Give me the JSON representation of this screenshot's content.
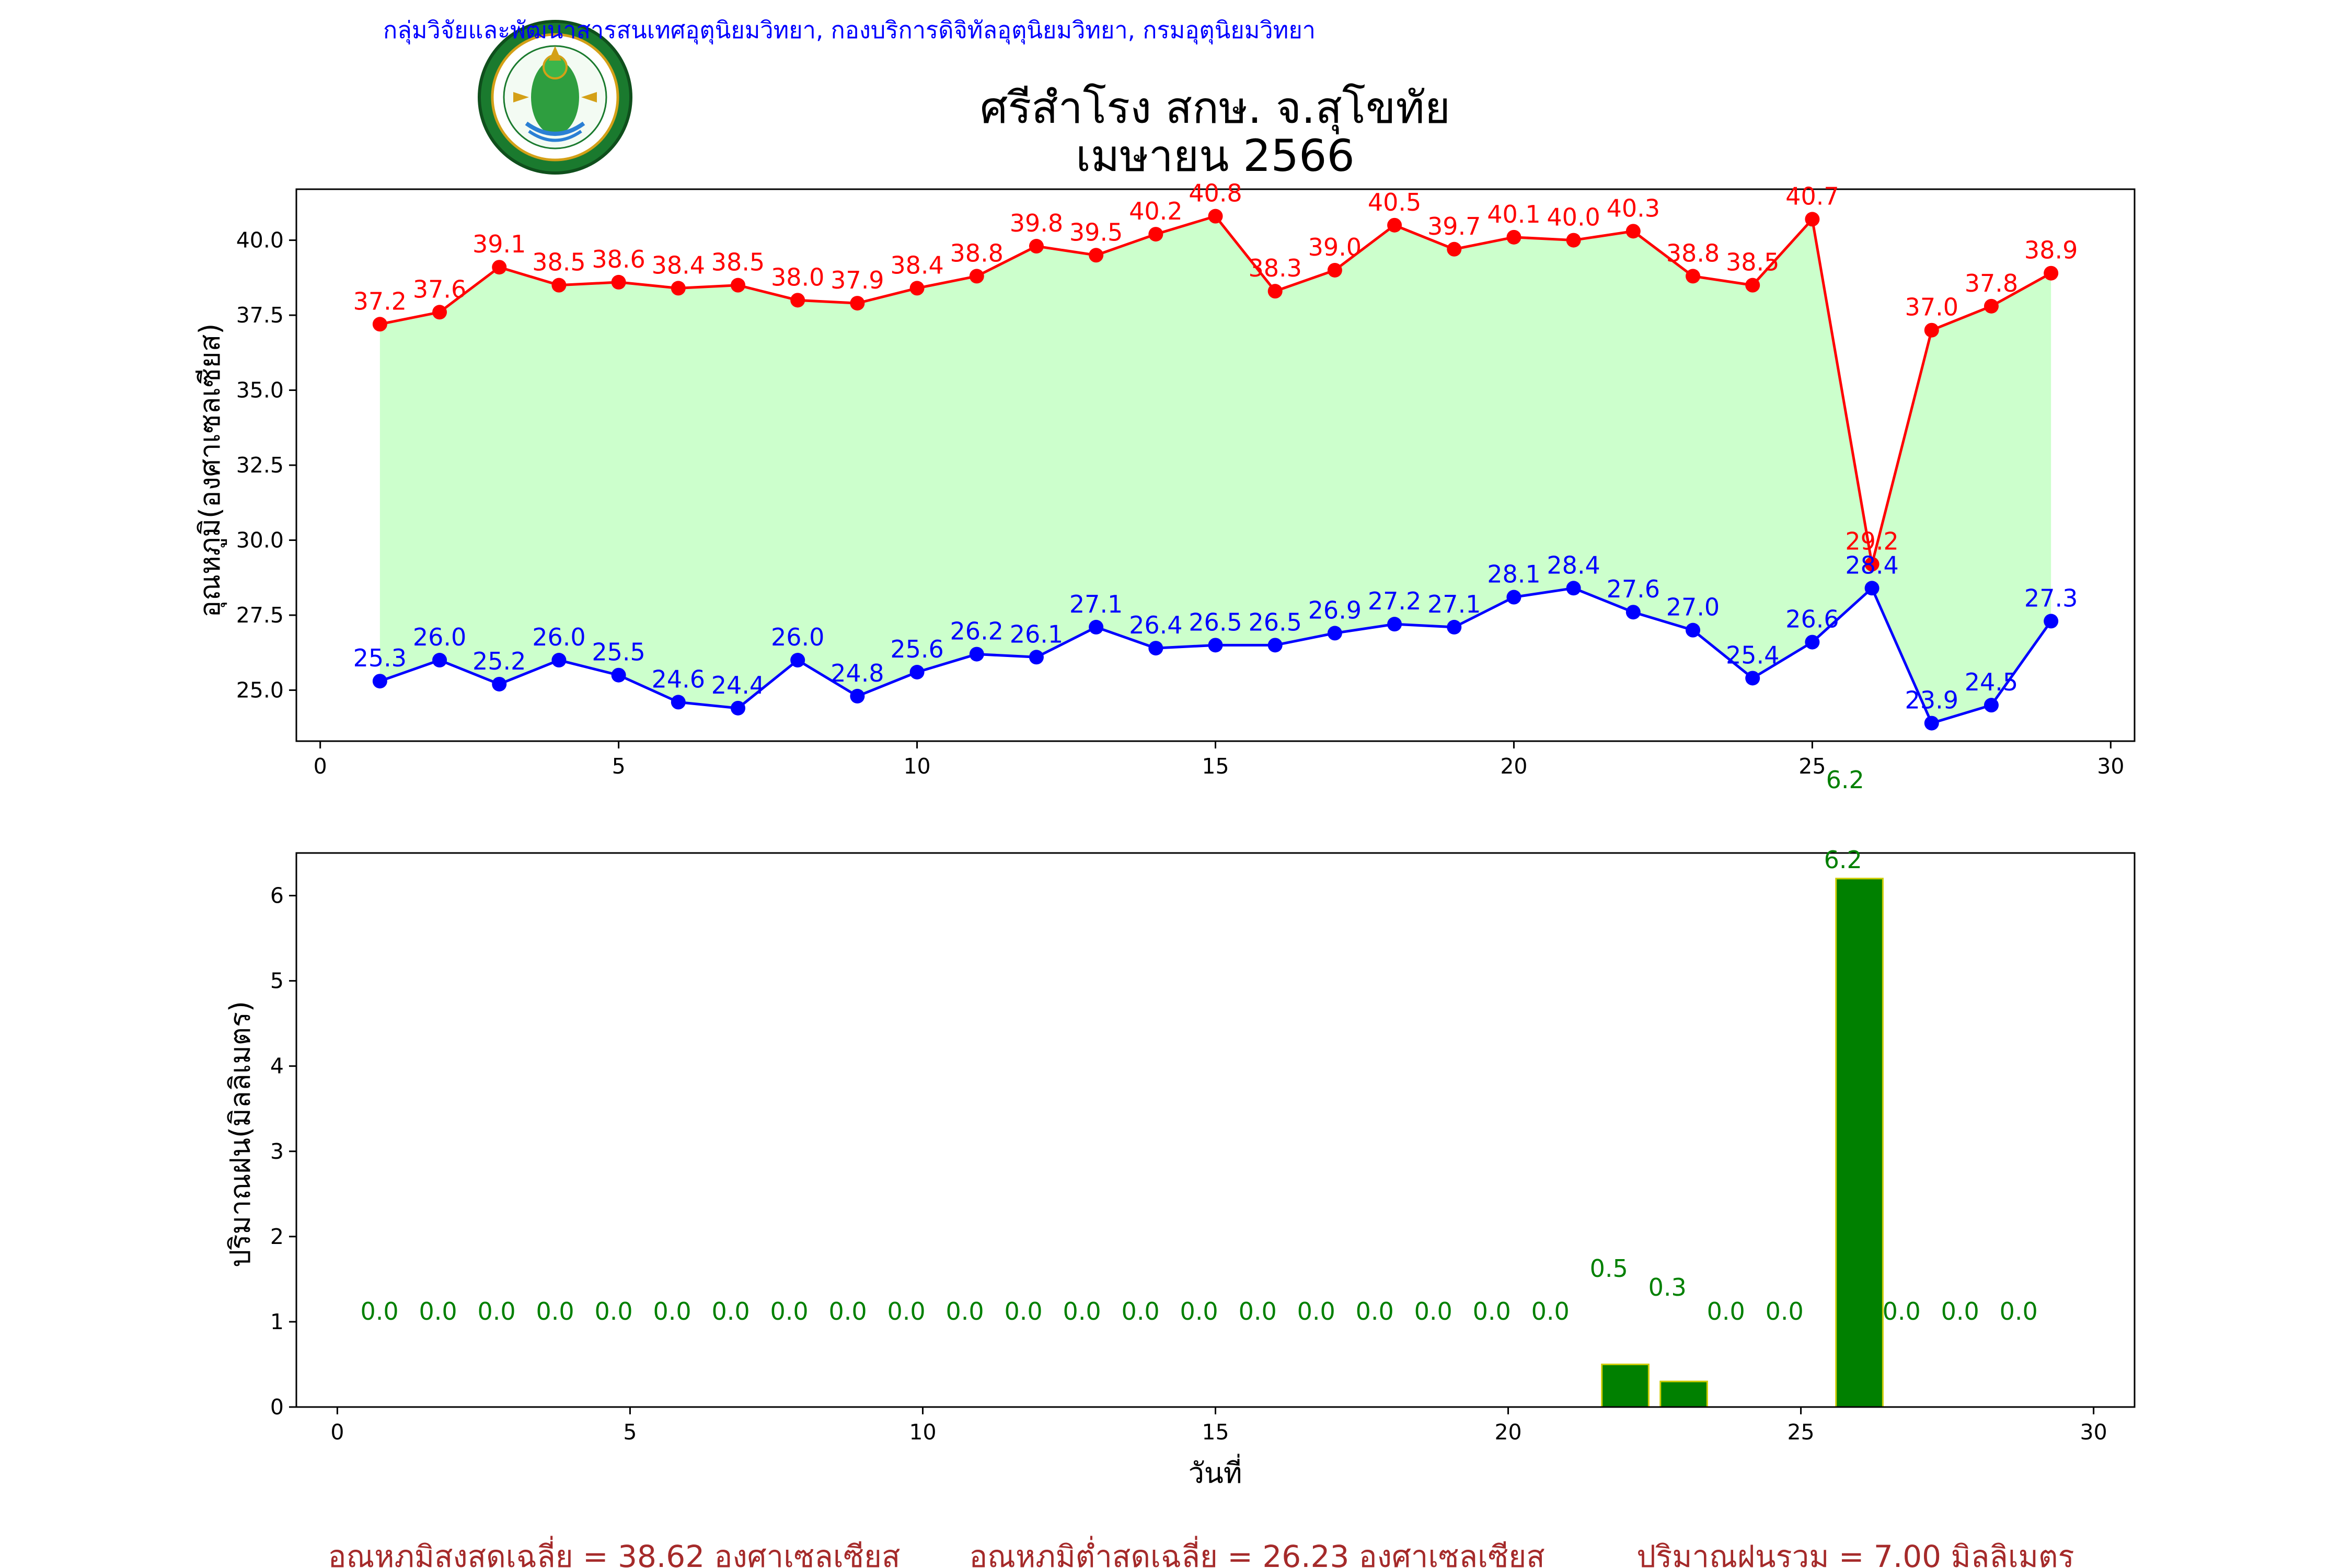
{
  "header": {
    "organization": "กลุ่มวิจัยและพัฒนาสารสนเทศอุตุนิยมวิทยา, กองบริการดิจิทัลอุตุนิยมวิทยา, กรมอุตุนิยมวิทยา",
    "logo_text": "กรมอุตุนิยมวิทยา METEOROLOGICAL DEPARTMENT",
    "title_line1": "ศรีสำโรง สกษ. จ.สุโขทัย",
    "title_line2": "เมษายน 2566"
  },
  "colors": {
    "max": "#ff0000",
    "min": "#0000ff",
    "band": "#ccffcc",
    "rain_bar": "#008000",
    "rain_edge": "#cccc00",
    "rain_label": "#008000",
    "org_text": "#0000ff",
    "summary_text": "#a52a2a"
  },
  "chart_data": [
    {
      "type": "line",
      "ylabel": "อุณหภูมิ(องศาเซลเซียส)",
      "xlim": [
        -0.4,
        30.4
      ],
      "ylim": [
        23.3,
        41.7
      ],
      "x_ticks": [
        0,
        5,
        10,
        15,
        20,
        25,
        30
      ],
      "y_ticks": [
        "25.0",
        "27.5",
        "30.0",
        "32.5",
        "35.0",
        "37.5",
        "40.0"
      ],
      "x": [
        1,
        2,
        3,
        4,
        5,
        6,
        7,
        8,
        9,
        10,
        11,
        12,
        13,
        14,
        15,
        16,
        17,
        18,
        19,
        20,
        21,
        22,
        23,
        24,
        25,
        26,
        27,
        28,
        29
      ],
      "series": [
        {
          "key": "max",
          "values": [
            37.2,
            37.6,
            39.1,
            38.5,
            38.6,
            38.4,
            38.5,
            38.0,
            37.9,
            38.4,
            38.8,
            39.8,
            39.5,
            40.2,
            40.8,
            38.3,
            39.0,
            40.5,
            39.7,
            40.1,
            40.0,
            40.3,
            38.8,
            38.5,
            40.7,
            29.2,
            37.0,
            37.8,
            38.9
          ]
        },
        {
          "key": "min",
          "values": [
            25.3,
            26.0,
            25.2,
            26.0,
            25.5,
            24.6,
            24.4,
            26.0,
            24.8,
            25.6,
            26.2,
            26.1,
            27.1,
            26.4,
            26.5,
            26.5,
            26.9,
            27.2,
            27.1,
            28.1,
            28.4,
            27.6,
            27.0,
            25.4,
            26.6,
            28.4,
            23.9,
            24.5,
            27.3
          ]
        }
      ],
      "annotation": "6.2"
    },
    {
      "type": "bar",
      "xlabel": "วันที่",
      "ylabel": "ปริมาณฝน(มิลลิเมตร)",
      "xlim": [
        -0.7,
        30.7
      ],
      "ylim": [
        0,
        6.5
      ],
      "x_ticks": [
        0,
        5,
        10,
        15,
        20,
        25,
        30
      ],
      "y_ticks": [
        0,
        1,
        2,
        3,
        4,
        5,
        6
      ],
      "x": [
        1,
        2,
        3,
        4,
        5,
        6,
        7,
        8,
        9,
        10,
        11,
        12,
        13,
        14,
        15,
        16,
        17,
        18,
        19,
        20,
        21,
        22,
        23,
        24,
        25,
        26,
        27,
        28,
        29
      ],
      "values": [
        0.0,
        0.0,
        0.0,
        0.0,
        0.0,
        0.0,
        0.0,
        0.0,
        0.0,
        0.0,
        0.0,
        0.0,
        0.0,
        0.0,
        0.0,
        0.0,
        0.0,
        0.0,
        0.0,
        0.0,
        0.0,
        0.5,
        0.3,
        0.0,
        0.0,
        6.2,
        0.0,
        0.0,
        0.0
      ]
    }
  ],
  "summary": {
    "avg_max": "อุณหภูมิสูงสุดเฉลี่ย = 38.62 องศาเซลเซียส",
    "avg_min": "อุณหภูมิต่ำสุดเฉลี่ย = 26.23 องศาเซลเซียส",
    "total_rain": "ปริมาณฝนรวม = 7.00 มิลลิเมตร"
  }
}
